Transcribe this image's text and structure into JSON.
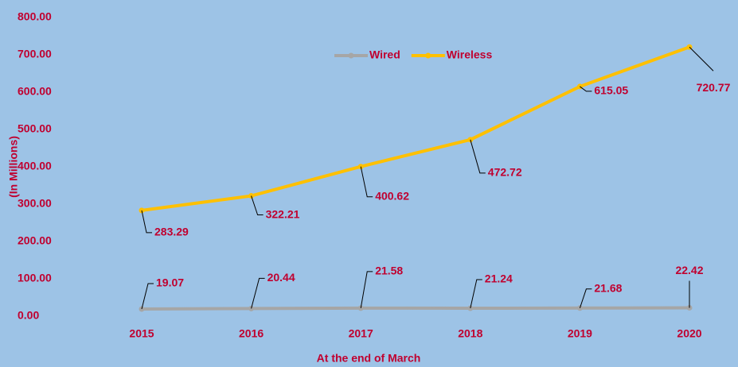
{
  "chart_data": {
    "type": "line",
    "x_label": "At the end of March",
    "y_label": "(In Millions)",
    "categories": [
      "2015",
      "2016",
      "2017",
      "2018",
      "2019",
      "2020"
    ],
    "series": [
      {
        "name": "Wired",
        "color": "#a6a6a6",
        "values": [
          19.07,
          20.44,
          21.58,
          21.24,
          21.68,
          22.42
        ]
      },
      {
        "name": "Wireless",
        "color": "#ffc000",
        "values": [
          283.29,
          322.21,
          400.62,
          472.72,
          615.05,
          720.77
        ]
      }
    ],
    "ylim": [
      0,
      800
    ],
    "yticks": [
      {
        "value": 0,
        "label": "0.00"
      },
      {
        "value": 100,
        "label": "100.00"
      },
      {
        "value": 200,
        "label": "200.00"
      },
      {
        "value": 300,
        "label": "300.00"
      },
      {
        "value": 400,
        "label": "400.00"
      },
      {
        "value": 500,
        "label": "500.00"
      },
      {
        "value": 600,
        "label": "600.00"
      },
      {
        "value": 700,
        "label": "700.00"
      },
      {
        "value": 800,
        "label": "800.00"
      }
    ],
    "legend": "top"
  }
}
